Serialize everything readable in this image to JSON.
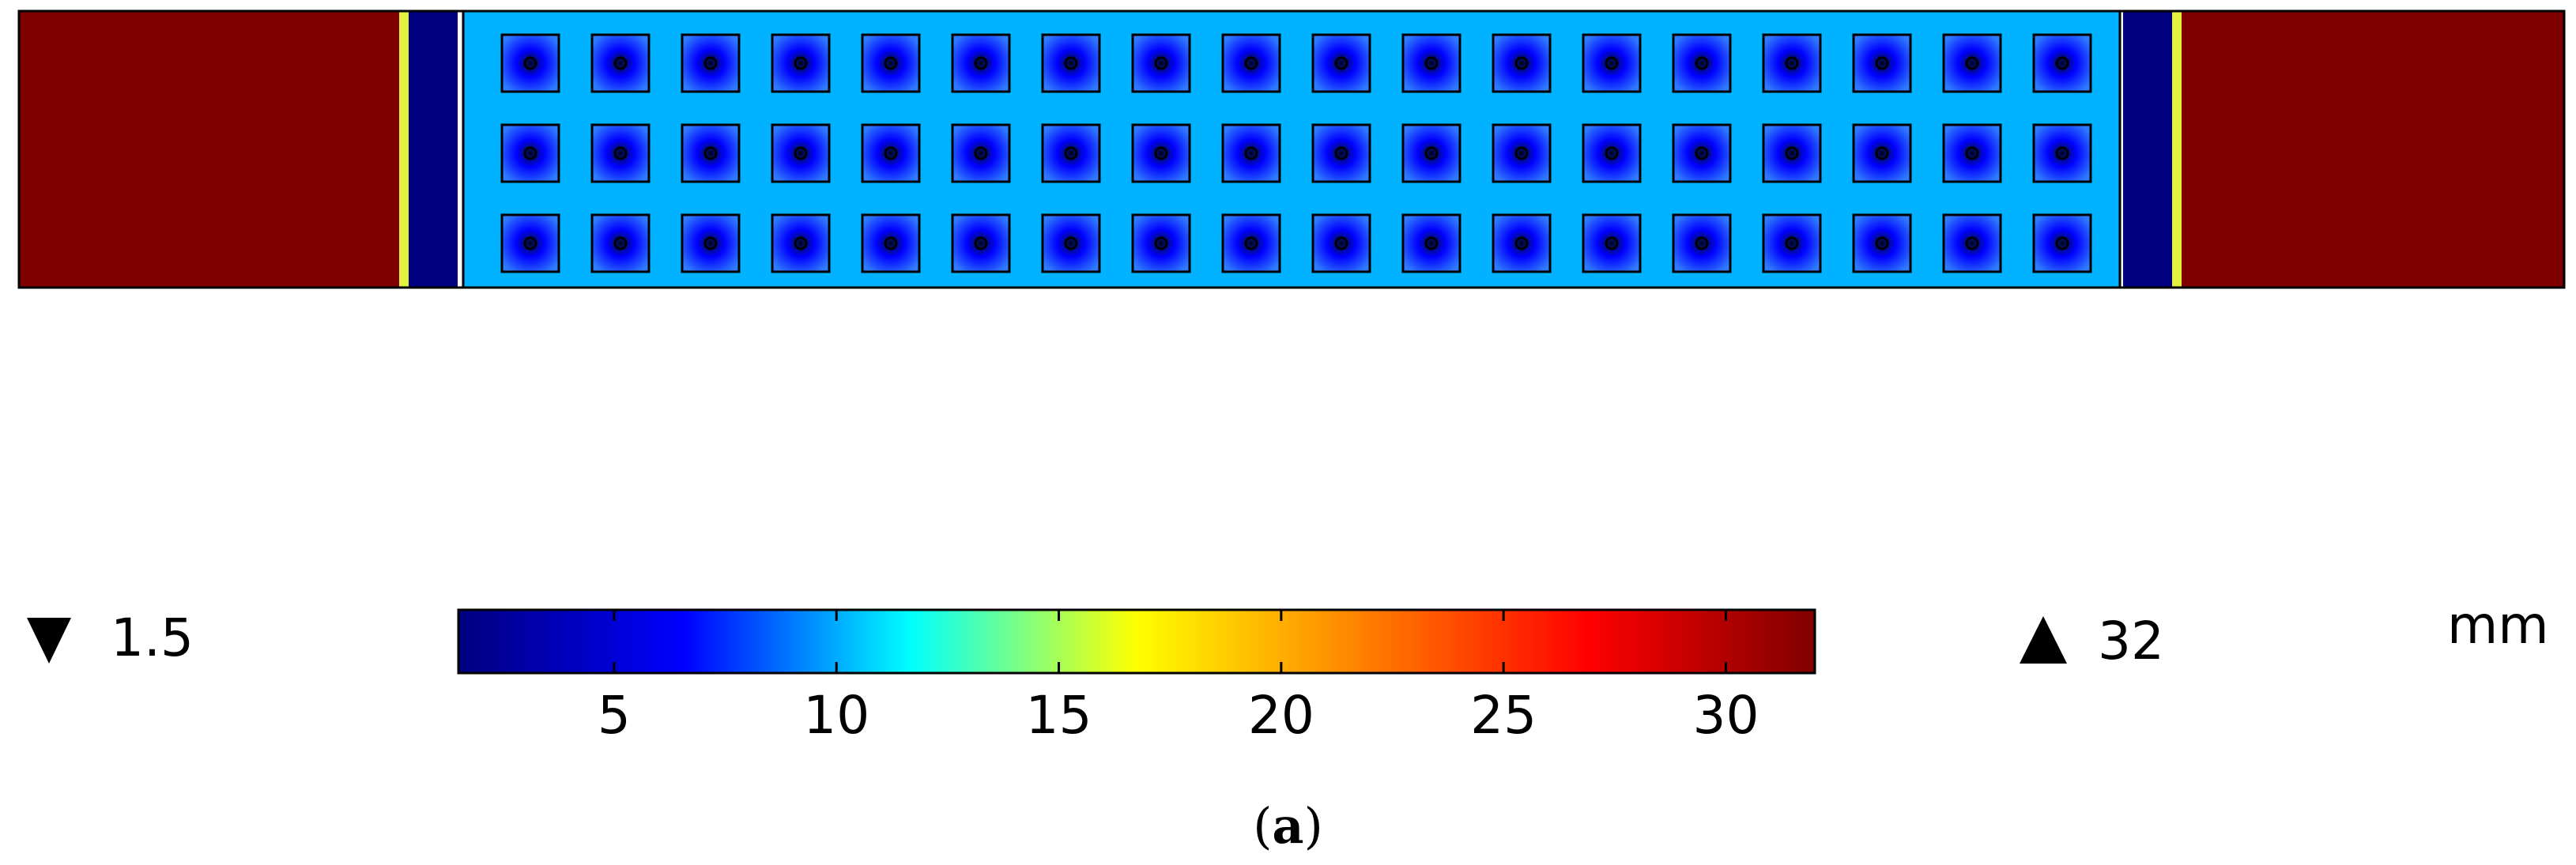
{
  "caption": {
    "open": "(",
    "letter": "a",
    "close": ")"
  },
  "legend": {
    "min_marker": "down-triangle-icon",
    "min_value": "1.5",
    "max_marker": "up-triangle-icon",
    "max_value": "32",
    "unit": "mm",
    "range": [
      1.5,
      32
    ],
    "ticks": [
      {
        "value": 5,
        "label": "5"
      },
      {
        "value": 10,
        "label": "10"
      },
      {
        "value": 15,
        "label": "15"
      },
      {
        "value": 20,
        "label": "20"
      },
      {
        "value": 25,
        "label": "25"
      },
      {
        "value": 30,
        "label": "30"
      }
    ],
    "colormap": [
      "#00007f",
      "#0000ff",
      "#00ffff",
      "#ffff00",
      "#ff8000",
      "#ff0000",
      "#7f0000"
    ]
  },
  "diagram": {
    "rows": 3,
    "columns": 18,
    "colors": {
      "outer_block": "#7f0000",
      "yellow_strip": "#e2f23e",
      "dark_band": "#00007f",
      "field": "#00b2ff",
      "cell_center": "#001040",
      "cell_edge": "#2a6cff"
    }
  }
}
